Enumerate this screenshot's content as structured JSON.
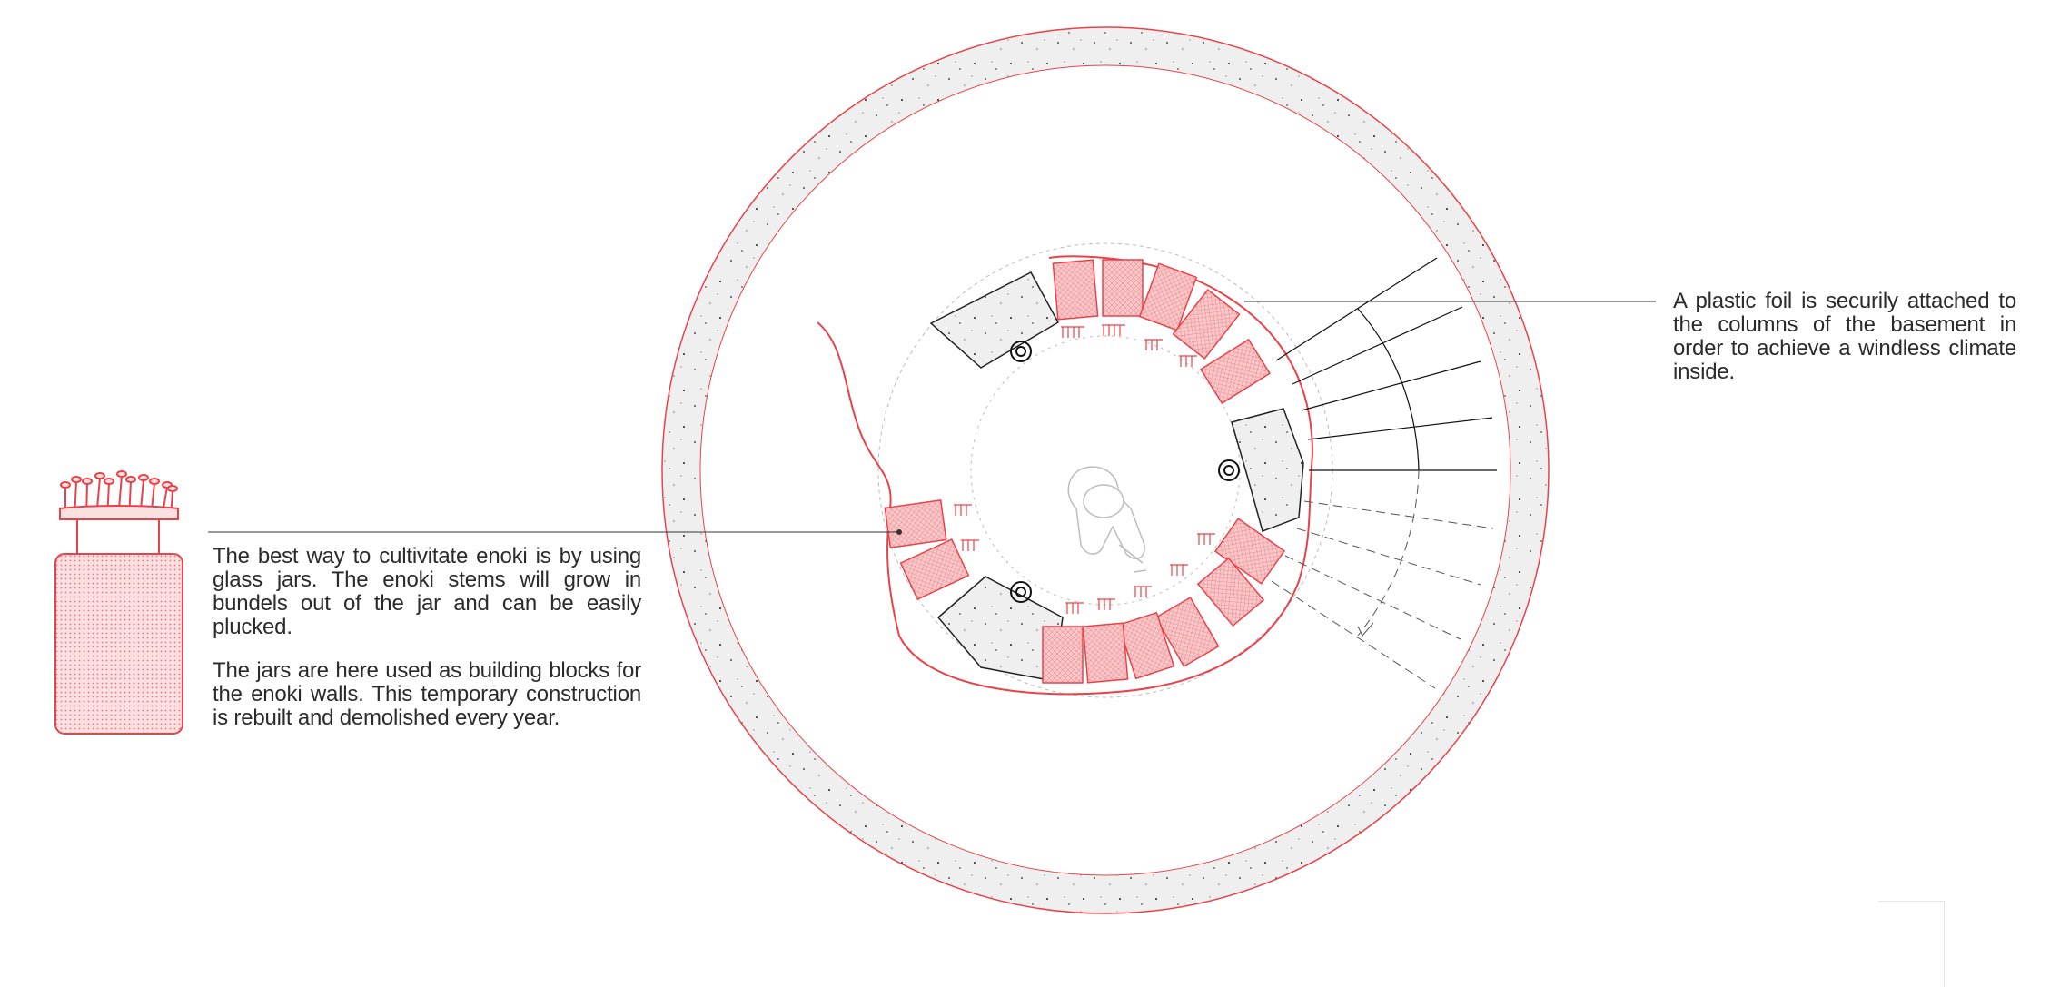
{
  "annotations": {
    "jars_note": {
      "paragraph_1": "The best way to cultivitate enoki is by using glass jars. The enoki stems will grow in bundels out of the jar and can be easily plucked.",
      "paragraph_2": "The jars are here used as building blocks for the enoki walls. This temporary construction is rebuilt and demolished every year."
    },
    "foil_note": "A plastic foil is securily attached to the columns of the basement in order to achieve a windless climate inside."
  },
  "colors": {
    "accent_red": "#e8434a",
    "jar_fill": "#f3b3b5",
    "concrete": "#eeeeee",
    "line": "#222222",
    "text": "#2b2b2b"
  },
  "icons": [
    "enoki-jar-icon",
    "person-topview-icon",
    "column-icon"
  ]
}
